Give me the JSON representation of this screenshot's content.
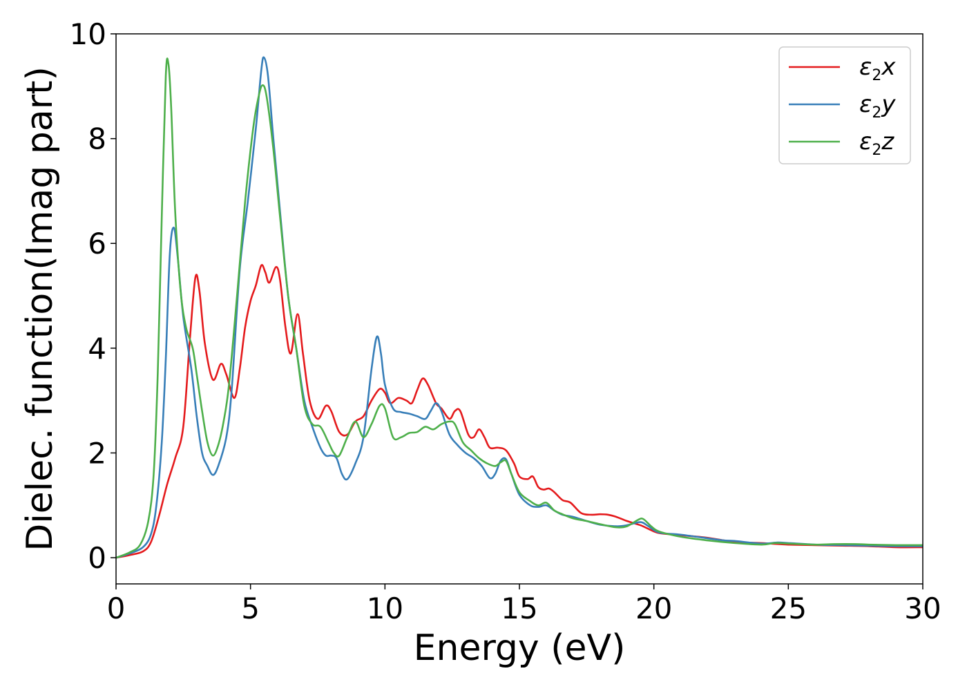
{
  "chart_data": {
    "type": "line",
    "xlabel": "Energy (eV)",
    "ylabel": "Dielec. function(Imag part)",
    "xlim": [
      0,
      30
    ],
    "ylim": [
      -0.5,
      10
    ],
    "xticks": [
      0,
      5,
      10,
      15,
      20,
      25,
      30
    ],
    "yticks": [
      0,
      2,
      4,
      6,
      8,
      10
    ],
    "xtick_labels": [
      "0",
      "5",
      "10",
      "15",
      "20",
      "25",
      "30"
    ],
    "ytick_labels": [
      "0",
      "2",
      "4",
      "6",
      "8",
      "10"
    ],
    "grid": false,
    "legend_position": "top-right",
    "series": [
      {
        "name": "ε2x",
        "legend": {
          "base": "ε",
          "sub": "2",
          "suffix": "x"
        },
        "color": "#e41a1c",
        "points": [
          [
            0,
            0
          ],
          [
            0.5,
            0.05
          ],
          [
            1.0,
            0.12
          ],
          [
            1.3,
            0.3
          ],
          [
            1.6,
            0.8
          ],
          [
            1.9,
            1.4
          ],
          [
            2.2,
            1.9
          ],
          [
            2.5,
            2.5
          ],
          [
            2.75,
            4.2
          ],
          [
            2.95,
            5.35
          ],
          [
            3.1,
            5.1
          ],
          [
            3.3,
            4.1
          ],
          [
            3.6,
            3.4
          ],
          [
            3.9,
            3.7
          ],
          [
            4.1,
            3.5
          ],
          [
            4.4,
            3.05
          ],
          [
            4.6,
            3.6
          ],
          [
            4.8,
            4.4
          ],
          [
            5.0,
            4.9
          ],
          [
            5.2,
            5.2
          ],
          [
            5.4,
            5.58
          ],
          [
            5.55,
            5.45
          ],
          [
            5.7,
            5.25
          ],
          [
            5.95,
            5.55
          ],
          [
            6.1,
            5.3
          ],
          [
            6.3,
            4.4
          ],
          [
            6.5,
            3.9
          ],
          [
            6.75,
            4.65
          ],
          [
            6.95,
            3.9
          ],
          [
            7.2,
            3.0
          ],
          [
            7.5,
            2.65
          ],
          [
            7.8,
            2.9
          ],
          [
            8.0,
            2.8
          ],
          [
            8.3,
            2.4
          ],
          [
            8.6,
            2.35
          ],
          [
            8.9,
            2.6
          ],
          [
            9.2,
            2.7
          ],
          [
            9.5,
            3.0
          ],
          [
            9.8,
            3.22
          ],
          [
            10.0,
            3.15
          ],
          [
            10.2,
            2.95
          ],
          [
            10.5,
            3.05
          ],
          [
            10.8,
            3.0
          ],
          [
            11.0,
            2.95
          ],
          [
            11.2,
            3.2
          ],
          [
            11.4,
            3.42
          ],
          [
            11.6,
            3.3
          ],
          [
            11.9,
            2.95
          ],
          [
            12.1,
            2.85
          ],
          [
            12.4,
            2.65
          ],
          [
            12.6,
            2.8
          ],
          [
            12.8,
            2.8
          ],
          [
            13.1,
            2.35
          ],
          [
            13.3,
            2.3
          ],
          [
            13.5,
            2.45
          ],
          [
            13.7,
            2.3
          ],
          [
            13.9,
            2.1
          ],
          [
            14.2,
            2.1
          ],
          [
            14.5,
            2.05
          ],
          [
            14.8,
            1.8
          ],
          [
            15.0,
            1.55
          ],
          [
            15.3,
            1.5
          ],
          [
            15.5,
            1.55
          ],
          [
            15.7,
            1.35
          ],
          [
            15.9,
            1.3
          ],
          [
            16.1,
            1.32
          ],
          [
            16.3,
            1.25
          ],
          [
            16.6,
            1.1
          ],
          [
            16.9,
            1.05
          ],
          [
            17.3,
            0.85
          ],
          [
            17.7,
            0.82
          ],
          [
            18.0,
            0.83
          ],
          [
            18.3,
            0.82
          ],
          [
            18.6,
            0.78
          ],
          [
            19.0,
            0.7
          ],
          [
            19.5,
            0.62
          ],
          [
            19.8,
            0.55
          ],
          [
            20.2,
            0.47
          ],
          [
            21.0,
            0.43
          ],
          [
            22.0,
            0.38
          ],
          [
            23.0,
            0.3
          ],
          [
            24.0,
            0.28
          ],
          [
            25.0,
            0.25
          ],
          [
            26.0,
            0.24
          ],
          [
            27.0,
            0.23
          ],
          [
            28.0,
            0.22
          ],
          [
            29.0,
            0.2
          ],
          [
            30.0,
            0.2
          ]
        ]
      },
      {
        "name": "ε2y",
        "legend": {
          "base": "ε",
          "sub": "2",
          "suffix": "y"
        },
        "color": "#377eb8",
        "points": [
          [
            0,
            0
          ],
          [
            0.5,
            0.08
          ],
          [
            1.0,
            0.2
          ],
          [
            1.3,
            0.45
          ],
          [
            1.5,
            1.0
          ],
          [
            1.7,
            2.2
          ],
          [
            1.85,
            3.8
          ],
          [
            2.0,
            5.8
          ],
          [
            2.15,
            6.3
          ],
          [
            2.3,
            5.7
          ],
          [
            2.5,
            4.6
          ],
          [
            2.8,
            3.6
          ],
          [
            3.0,
            2.7
          ],
          [
            3.2,
            2.0
          ],
          [
            3.4,
            1.75
          ],
          [
            3.6,
            1.58
          ],
          [
            3.8,
            1.75
          ],
          [
            4.1,
            2.3
          ],
          [
            4.3,
            3.2
          ],
          [
            4.6,
            5.5
          ],
          [
            4.9,
            6.8
          ],
          [
            5.2,
            8.2
          ],
          [
            5.4,
            9.3
          ],
          [
            5.5,
            9.55
          ],
          [
            5.65,
            9.2
          ],
          [
            5.85,
            8.0
          ],
          [
            6.1,
            6.6
          ],
          [
            6.4,
            5.0
          ],
          [
            6.7,
            4.0
          ],
          [
            7.0,
            3.0
          ],
          [
            7.3,
            2.5
          ],
          [
            7.6,
            2.1
          ],
          [
            7.8,
            1.95
          ],
          [
            8.0,
            1.95
          ],
          [
            8.2,
            1.9
          ],
          [
            8.4,
            1.6
          ],
          [
            8.6,
            1.5
          ],
          [
            8.9,
            1.8
          ],
          [
            9.2,
            2.3
          ],
          [
            9.5,
            3.6
          ],
          [
            9.7,
            4.22
          ],
          [
            9.85,
            3.9
          ],
          [
            10.0,
            3.3
          ],
          [
            10.3,
            2.85
          ],
          [
            10.6,
            2.78
          ],
          [
            10.9,
            2.75
          ],
          [
            11.2,
            2.7
          ],
          [
            11.5,
            2.65
          ],
          [
            11.7,
            2.8
          ],
          [
            11.9,
            2.95
          ],
          [
            12.1,
            2.8
          ],
          [
            12.4,
            2.35
          ],
          [
            12.7,
            2.15
          ],
          [
            13.0,
            2.0
          ],
          [
            13.3,
            1.9
          ],
          [
            13.6,
            1.75
          ],
          [
            13.9,
            1.52
          ],
          [
            14.1,
            1.6
          ],
          [
            14.3,
            1.85
          ],
          [
            14.5,
            1.88
          ],
          [
            14.7,
            1.6
          ],
          [
            15.0,
            1.2
          ],
          [
            15.4,
            1.0
          ],
          [
            15.7,
            0.97
          ],
          [
            16.0,
            1.0
          ],
          [
            16.3,
            0.9
          ],
          [
            16.6,
            0.82
          ],
          [
            17.0,
            0.78
          ],
          [
            17.5,
            0.7
          ],
          [
            18.0,
            0.63
          ],
          [
            18.6,
            0.6
          ],
          [
            19.0,
            0.62
          ],
          [
            19.5,
            0.68
          ],
          [
            19.8,
            0.6
          ],
          [
            20.2,
            0.48
          ],
          [
            21.0,
            0.44
          ],
          [
            22.0,
            0.37
          ],
          [
            22.6,
            0.33
          ],
          [
            23.0,
            0.32
          ],
          [
            24.0,
            0.27
          ],
          [
            24.6,
            0.29
          ],
          [
            25.0,
            0.28
          ],
          [
            26.0,
            0.25
          ],
          [
            27.0,
            0.24
          ],
          [
            28.0,
            0.23
          ],
          [
            29.0,
            0.22
          ],
          [
            30.0,
            0.22
          ]
        ]
      },
      {
        "name": "ε2z",
        "legend": {
          "base": "ε",
          "sub": "2",
          "suffix": "z"
        },
        "color": "#4daf4a",
        "points": [
          [
            0,
            0
          ],
          [
            0.5,
            0.1
          ],
          [
            0.9,
            0.25
          ],
          [
            1.2,
            0.7
          ],
          [
            1.4,
            1.6
          ],
          [
            1.55,
            3.5
          ],
          [
            1.7,
            6.5
          ],
          [
            1.85,
            9.2
          ],
          [
            1.95,
            9.42
          ],
          [
            2.05,
            8.6
          ],
          [
            2.2,
            6.6
          ],
          [
            2.4,
            5.1
          ],
          [
            2.6,
            4.4
          ],
          [
            2.85,
            4.0
          ],
          [
            3.0,
            3.5
          ],
          [
            3.2,
            2.8
          ],
          [
            3.4,
            2.2
          ],
          [
            3.6,
            1.95
          ],
          [
            3.8,
            2.15
          ],
          [
            4.0,
            2.6
          ],
          [
            4.2,
            3.3
          ],
          [
            4.5,
            5.0
          ],
          [
            4.8,
            6.8
          ],
          [
            5.1,
            8.2
          ],
          [
            5.3,
            8.8
          ],
          [
            5.45,
            9.02
          ],
          [
            5.6,
            8.8
          ],
          [
            5.85,
            7.8
          ],
          [
            6.1,
            6.5
          ],
          [
            6.4,
            5.0
          ],
          [
            6.7,
            4.0
          ],
          [
            7.0,
            2.9
          ],
          [
            7.3,
            2.55
          ],
          [
            7.6,
            2.5
          ],
          [
            7.9,
            2.2
          ],
          [
            8.1,
            2.0
          ],
          [
            8.3,
            1.95
          ],
          [
            8.6,
            2.3
          ],
          [
            8.9,
            2.6
          ],
          [
            9.2,
            2.3
          ],
          [
            9.5,
            2.55
          ],
          [
            9.8,
            2.9
          ],
          [
            10.0,
            2.85
          ],
          [
            10.3,
            2.3
          ],
          [
            10.6,
            2.3
          ],
          [
            10.9,
            2.38
          ],
          [
            11.2,
            2.4
          ],
          [
            11.5,
            2.5
          ],
          [
            11.8,
            2.45
          ],
          [
            12.1,
            2.55
          ],
          [
            12.4,
            2.6
          ],
          [
            12.6,
            2.55
          ],
          [
            12.9,
            2.2
          ],
          [
            13.2,
            2.05
          ],
          [
            13.5,
            1.9
          ],
          [
            13.8,
            1.8
          ],
          [
            14.1,
            1.75
          ],
          [
            14.3,
            1.82
          ],
          [
            14.5,
            1.85
          ],
          [
            14.7,
            1.6
          ],
          [
            15.0,
            1.25
          ],
          [
            15.4,
            1.08
          ],
          [
            15.7,
            1.0
          ],
          [
            16.0,
            1.05
          ],
          [
            16.3,
            0.9
          ],
          [
            16.6,
            0.83
          ],
          [
            17.0,
            0.75
          ],
          [
            17.5,
            0.7
          ],
          [
            18.0,
            0.64
          ],
          [
            18.6,
            0.58
          ],
          [
            19.0,
            0.6
          ],
          [
            19.4,
            0.72
          ],
          [
            19.6,
            0.74
          ],
          [
            19.9,
            0.6
          ],
          [
            20.2,
            0.5
          ],
          [
            21.0,
            0.4
          ],
          [
            22.0,
            0.33
          ],
          [
            23.0,
            0.28
          ],
          [
            24.0,
            0.25
          ],
          [
            24.5,
            0.28
          ],
          [
            25.0,
            0.27
          ],
          [
            26.0,
            0.25
          ],
          [
            26.7,
            0.26
          ],
          [
            27.5,
            0.26
          ],
          [
            28.0,
            0.25
          ],
          [
            29.0,
            0.24
          ],
          [
            30.0,
            0.24
          ]
        ]
      }
    ]
  }
}
